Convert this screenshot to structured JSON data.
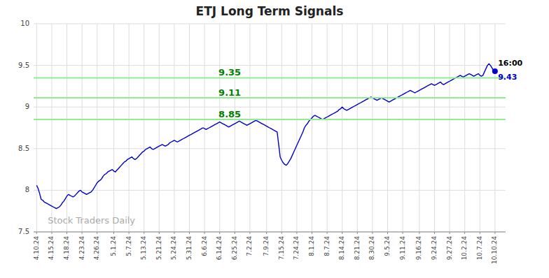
{
  "chart_data": {
    "type": "line",
    "title": "ETJ Long Term Signals",
    "color": "#0000cc",
    "grid": true,
    "ylim": [
      7.5,
      10.0
    ],
    "yticks": [
      7.5,
      8,
      8.5,
      9,
      9.5,
      10
    ],
    "reference_lines": [
      {
        "value": 8.85,
        "label": "8.85",
        "color": "#90EE90"
      },
      {
        "value": 9.11,
        "label": "9.11",
        "color": "#90EE90"
      },
      {
        "value": 9.35,
        "label": "9.35",
        "color": "#90EE90"
      }
    ],
    "last_point": {
      "label": "16:00",
      "value": 9.43,
      "color": "#0000cc"
    },
    "watermark": "Stock Traders Daily",
    "categories": [
      "4.10.24",
      null,
      null,
      null,
      null,
      null,
      null,
      null,
      null,
      null,
      "4.15.24",
      null,
      null,
      null,
      null,
      null,
      null,
      null,
      null,
      null,
      "4.18.24",
      null,
      null,
      null,
      null,
      null,
      null,
      null,
      null,
      null,
      "4.23.24",
      null,
      null,
      null,
      null,
      null,
      null,
      null,
      null,
      null,
      "4.26.24",
      null,
      null,
      null,
      null,
      null,
      null,
      null,
      null,
      null,
      null,
      "5.1.24",
      null,
      null,
      null,
      null,
      null,
      null,
      null,
      null,
      null,
      "5.7.24",
      null,
      null,
      null,
      null,
      null,
      null,
      null,
      null,
      null,
      "5.13.24",
      null,
      null,
      null,
      null,
      null,
      null,
      null,
      null,
      null,
      "5.21.24",
      null,
      null,
      null,
      null,
      null,
      null,
      null,
      null,
      null,
      "5.24.24",
      null,
      null,
      null,
      null,
      null,
      null,
      null,
      null,
      null,
      "5.31.24",
      null,
      null,
      null,
      null,
      null,
      null,
      null,
      null,
      null,
      "6.6.24",
      null,
      null,
      null,
      null,
      null,
      null,
      null,
      null,
      null,
      "6.14.24",
      null,
      null,
      null,
      null,
      null,
      null,
      null,
      null,
      null,
      "6.25.24",
      null,
      null,
      null,
      null,
      null,
      null,
      null,
      null,
      null,
      "7.2.24",
      null,
      null,
      null,
      null,
      null,
      null,
      null,
      null,
      null,
      null,
      "7.9.24",
      null,
      null,
      null,
      null,
      null,
      null,
      null,
      null,
      null,
      "7.15.24",
      null,
      null,
      null,
      null,
      null,
      null,
      null,
      null,
      null,
      "7.24.24",
      null,
      null,
      null,
      null,
      null,
      null,
      null,
      null,
      null,
      "8.1.24",
      null,
      null,
      null,
      null,
      null,
      null,
      null,
      null,
      null,
      "8.7.24",
      null,
      null,
      null,
      null,
      null,
      null,
      null,
      null,
      null,
      "8.14.24",
      null,
      null,
      null,
      null,
      null,
      null,
      null,
      null,
      null,
      "8.21.24",
      null,
      null,
      null,
      null,
      null,
      null,
      null,
      null,
      null,
      "8.30.24",
      null,
      null,
      null,
      null,
      null,
      null,
      null,
      null,
      null,
      "9.5.24",
      null,
      null,
      null,
      null,
      null,
      null,
      null,
      null,
      null,
      "9.11.24",
      null,
      null,
      null,
      null,
      null,
      null,
      null,
      null,
      null,
      null,
      "9.16.24",
      null,
      null,
      null,
      null,
      null,
      null,
      null,
      null,
      null,
      "9.24.24",
      null,
      null,
      null,
      null,
      null,
      null,
      null,
      null,
      null,
      "9.27.24",
      null,
      null,
      null,
      null,
      null,
      null,
      null,
      null,
      null,
      "10.2.24",
      null,
      null,
      null,
      null,
      null,
      null,
      null,
      null,
      null,
      "10.7.24",
      null,
      null,
      null,
      null,
      null,
      null,
      null,
      null,
      null,
      "10.10.24"
    ],
    "values": [
      8.06,
      8.02,
      7.96,
      7.89,
      7.88,
      7.86,
      7.85,
      7.84,
      7.83,
      7.82,
      7.81,
      7.8,
      7.79,
      7.78,
      7.79,
      7.8,
      7.82,
      7.85,
      7.87,
      7.9,
      7.93,
      7.95,
      7.94,
      7.93,
      7.92,
      7.93,
      7.95,
      7.97,
      7.99,
      8.0,
      7.98,
      7.97,
      7.96,
      7.95,
      7.96,
      7.97,
      7.98,
      8.0,
      8.03,
      8.06,
      8.09,
      8.11,
      8.12,
      8.14,
      8.17,
      8.19,
      8.2,
      8.22,
      8.23,
      8.24,
      8.25,
      8.23,
      8.22,
      8.24,
      8.26,
      8.28,
      8.3,
      8.32,
      8.34,
      8.35,
      8.37,
      8.38,
      8.39,
      8.4,
      8.38,
      8.37,
      8.38,
      8.4,
      8.42,
      8.44,
      8.46,
      8.47,
      8.49,
      8.5,
      8.51,
      8.52,
      8.5,
      8.49,
      8.5,
      8.51,
      8.52,
      8.53,
      8.54,
      8.55,
      8.54,
      8.53,
      8.54,
      8.55,
      8.57,
      8.58,
      8.59,
      8.6,
      8.59,
      8.58,
      8.59,
      8.6,
      8.61,
      8.62,
      8.63,
      8.64,
      8.65,
      8.66,
      8.67,
      8.68,
      8.69,
      8.7,
      8.71,
      8.72,
      8.73,
      8.74,
      8.75,
      8.74,
      8.73,
      8.74,
      8.75,
      8.76,
      8.77,
      8.78,
      8.79,
      8.8,
      8.81,
      8.82,
      8.81,
      8.8,
      8.79,
      8.78,
      8.77,
      8.76,
      8.77,
      8.78,
      8.79,
      8.8,
      8.81,
      8.82,
      8.83,
      8.82,
      8.81,
      8.8,
      8.79,
      8.78,
      8.79,
      8.8,
      8.81,
      8.82,
      8.83,
      8.84,
      8.83,
      8.82,
      8.81,
      8.8,
      8.79,
      8.78,
      8.77,
      8.76,
      8.75,
      8.74,
      8.73,
      8.72,
      8.71,
      8.7,
      8.55,
      8.4,
      8.36,
      8.33,
      8.31,
      8.3,
      8.32,
      8.35,
      8.38,
      8.42,
      8.46,
      8.5,
      8.54,
      8.58,
      8.62,
      8.66,
      8.7,
      8.75,
      8.78,
      8.8,
      8.83,
      8.85,
      8.87,
      8.89,
      8.9,
      8.89,
      8.88,
      8.87,
      8.86,
      8.85,
      8.86,
      8.87,
      8.88,
      8.89,
      8.9,
      8.91,
      8.92,
      8.93,
      8.94,
      8.95,
      8.97,
      8.98,
      9.0,
      8.98,
      8.97,
      8.96,
      8.97,
      8.98,
      8.99,
      9.0,
      9.01,
      9.02,
      9.03,
      9.04,
      9.05,
      9.06,
      9.07,
      9.08,
      9.09,
      9.1,
      9.11,
      9.12,
      9.11,
      9.1,
      9.09,
      9.08,
      9.09,
      9.1,
      9.11,
      9.1,
      9.09,
      9.08,
      9.07,
      9.06,
      9.07,
      9.08,
      9.09,
      9.1,
      9.11,
      9.12,
      9.13,
      9.14,
      9.15,
      9.16,
      9.17,
      9.18,
      9.19,
      9.2,
      9.19,
      9.18,
      9.17,
      9.18,
      9.19,
      9.2,
      9.21,
      9.22,
      9.23,
      9.24,
      9.25,
      9.26,
      9.27,
      9.28,
      9.27,
      9.26,
      9.27,
      9.28,
      9.29,
      9.3,
      9.28,
      9.27,
      9.28,
      9.29,
      9.3,
      9.31,
      9.32,
      9.33,
      9.34,
      9.35,
      9.36,
      9.37,
      9.38,
      9.37,
      9.36,
      9.37,
      9.38,
      9.39,
      9.4,
      9.39,
      9.38,
      9.37,
      9.38,
      9.39,
      9.4,
      9.38,
      9.37,
      9.38,
      9.42,
      9.46,
      9.5,
      9.52,
      9.5,
      9.47,
      9.44,
      9.43
    ]
  }
}
